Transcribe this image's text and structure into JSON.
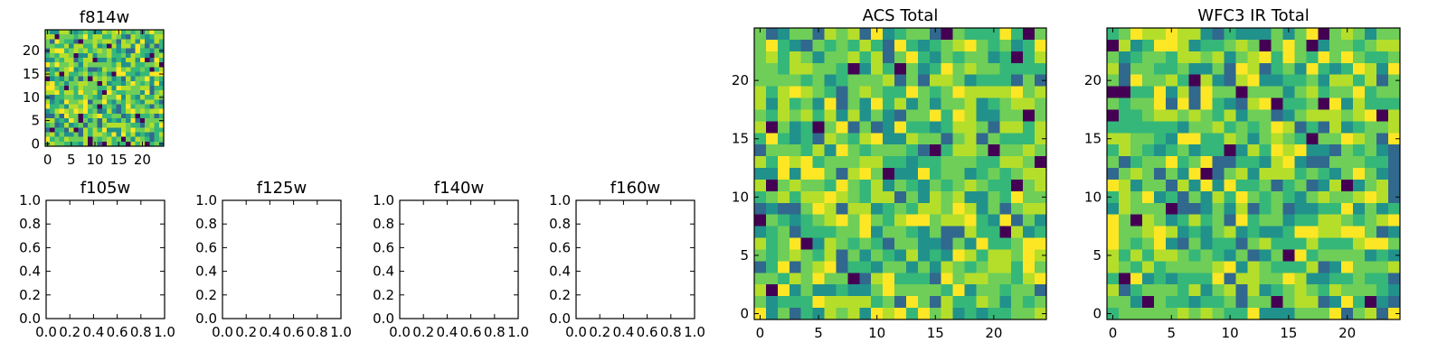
{
  "figure": {
    "colormap": [
      "#440154",
      "#31688e",
      "#21918c",
      "#35b779",
      "#6ece58",
      "#b5de2b",
      "#fde725"
    ],
    "pixel_values": "random noise images, viridis colormap"
  },
  "chart_data": [
    {
      "type": "heatmap",
      "title": "f814w",
      "grid_size": 25,
      "xlim": [
        -0.5,
        24.5
      ],
      "ylim": [
        -0.5,
        24.5
      ],
      "xticks": [
        "0",
        "5",
        "10",
        "15",
        "20"
      ],
      "yticks": [
        "0",
        "5",
        "10",
        "15",
        "20"
      ],
      "seed": 814
    },
    {
      "type": "empty",
      "title": "f105w",
      "xlim": [
        0,
        1
      ],
      "ylim": [
        0,
        1
      ],
      "xticks": [
        "0.0",
        "0.2",
        "0.4",
        "0.6",
        "0.8",
        "1.0"
      ],
      "yticks": [
        "0.0",
        "0.2",
        "0.4",
        "0.6",
        "0.8",
        "1.0"
      ]
    },
    {
      "type": "empty",
      "title": "f125w",
      "xlim": [
        0,
        1
      ],
      "ylim": [
        0,
        1
      ],
      "xticks": [
        "0.0",
        "0.2",
        "0.4",
        "0.6",
        "0.8",
        "1.0"
      ],
      "yticks": [
        "0.0",
        "0.2",
        "0.4",
        "0.6",
        "0.8",
        "1.0"
      ]
    },
    {
      "type": "empty",
      "title": "f140w",
      "xlim": [
        0,
        1
      ],
      "ylim": [
        0,
        1
      ],
      "xticks": [
        "0.0",
        "0.2",
        "0.4",
        "0.6",
        "0.8",
        "1.0"
      ],
      "yticks": [
        "0.0",
        "0.2",
        "0.4",
        "0.6",
        "0.8",
        "1.0"
      ]
    },
    {
      "type": "empty",
      "title": "f160w",
      "xlim": [
        0,
        1
      ],
      "ylim": [
        0,
        1
      ],
      "xticks": [
        "0.0",
        "0.2",
        "0.4",
        "0.6",
        "0.8",
        "1.0"
      ],
      "yticks": [
        "0.0",
        "0.2",
        "0.4",
        "0.6",
        "0.8",
        "1.0"
      ]
    },
    {
      "type": "heatmap",
      "title": "ACS Total",
      "grid_size": 25,
      "xlim": [
        -0.5,
        24.5
      ],
      "ylim": [
        -0.5,
        24.5
      ],
      "xticks": [
        "0",
        "5",
        "10",
        "15",
        "20"
      ],
      "yticks": [
        "0",
        "5",
        "10",
        "15",
        "20"
      ],
      "seed": 1001
    },
    {
      "type": "heatmap",
      "title": "WFC3 IR Total",
      "grid_size": 25,
      "xlim": [
        -0.5,
        24.5
      ],
      "ylim": [
        -0.5,
        24.5
      ],
      "xticks": [
        "0",
        "5",
        "10",
        "15",
        "20"
      ],
      "yticks": [
        "0",
        "5",
        "10",
        "15",
        "20"
      ],
      "seed": 3003
    }
  ]
}
